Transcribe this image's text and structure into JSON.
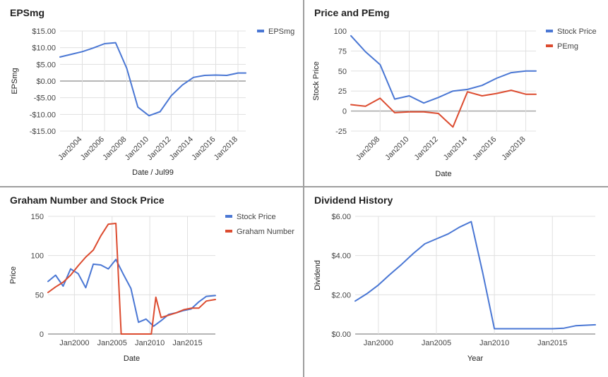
{
  "colors": {
    "blue": "#4a77d4",
    "red": "#dc4b2f",
    "grid": "#e0e0e0",
    "baseline": "#9e9e9e",
    "tick_text": "#444444",
    "title_text": "#222222"
  },
  "chart_data": [
    {
      "id": "epsmg",
      "type": "line",
      "title": "EPSmg",
      "xlabel": "Date / Jul99",
      "ylabel": "EPSmg",
      "x_axis": "date",
      "xlim": [
        2002.0,
        2018.7
      ],
      "ylim": [
        -15,
        15
      ],
      "yticks": [
        15,
        10,
        5,
        0,
        -5,
        -10,
        -15
      ],
      "ytick_labels": [
        "$15.00",
        "$10.00",
        "$5.00",
        "$0.00",
        "-$5.00",
        "-$10.00",
        "-$15.00"
      ],
      "xticks": [
        2004,
        2006,
        2008,
        2010,
        2012,
        2014,
        2016,
        2018
      ],
      "xtick_labels": [
        "Jan2004",
        "Jan2006",
        "Jan2008",
        "Jan2010",
        "Jan2012",
        "Jan2014",
        "Jan2016",
        "Jan2018"
      ],
      "x_label_rotate": true,
      "legend": "top-right",
      "series": [
        {
          "name": "EPSmg",
          "color": "#4a77d4",
          "x": [
            2002.0,
            2003.0,
            2004.0,
            2005.0,
            2006.0,
            2007.0,
            2008.0,
            2009.0,
            2010.0,
            2011.0,
            2012.0,
            2013.0,
            2014.0,
            2015.0,
            2016.0,
            2017.0,
            2018.0,
            2018.7
          ],
          "y": [
            7.2,
            8.0,
            8.8,
            9.9,
            11.2,
            11.5,
            3.8,
            -7.8,
            -10.4,
            -9.2,
            -4.4,
            -1.2,
            1.1,
            1.7,
            1.8,
            1.7,
            2.4,
            2.4
          ]
        }
      ]
    },
    {
      "id": "price-pemg",
      "type": "line",
      "title": "Price and PEmg",
      "xlabel": "Date",
      "ylabel": "Stock Price",
      "x_axis": "date",
      "xlim": [
        2006.0,
        2018.7
      ],
      "ylim": [
        -25,
        100
      ],
      "yticks": [
        100,
        75,
        50,
        25,
        0,
        -25
      ],
      "ytick_labels": [
        "100",
        "75",
        "50",
        "25",
        "0",
        "-25"
      ],
      "xticks": [
        2008,
        2010,
        2012,
        2014,
        2016,
        2018
      ],
      "xtick_labels": [
        "Jan2008",
        "Jan2010",
        "Jan2012",
        "Jan2014",
        "Jan2016",
        "Jan2018"
      ],
      "x_label_rotate": true,
      "legend": "top-right",
      "series": [
        {
          "name": "Stock Price",
          "color": "#4a77d4",
          "x": [
            2006.0,
            2007.0,
            2008.0,
            2009.0,
            2010.0,
            2011.0,
            2012.0,
            2013.0,
            2014.0,
            2015.0,
            2016.0,
            2017.0,
            2018.0,
            2018.7
          ],
          "y": [
            94,
            74,
            58,
            15,
            19,
            10,
            17,
            25,
            27,
            32,
            41,
            48,
            50,
            50
          ]
        },
        {
          "name": "PEmg",
          "color": "#dc4b2f",
          "x": [
            2006.0,
            2007.0,
            2008.0,
            2009.0,
            2010.0,
            2011.0,
            2012.0,
            2013.0,
            2014.0,
            2015.0,
            2016.0,
            2017.0,
            2018.0,
            2018.7
          ],
          "y": [
            8,
            6,
            16,
            -2,
            -1,
            -1,
            -3,
            -20,
            24,
            19,
            22,
            26,
            21,
            21
          ]
        }
      ]
    },
    {
      "id": "graham",
      "type": "line",
      "title": "Graham Number and Stock Price",
      "xlabel": "Date",
      "ylabel": "Price",
      "x_axis": "date",
      "xlim": [
        1996.5,
        2018.7
      ],
      "ylim": [
        0,
        150
      ],
      "yticks": [
        150,
        100,
        50,
        0
      ],
      "ytick_labels": [
        "150",
        "100",
        "50",
        "0"
      ],
      "xticks": [
        2000,
        2005,
        2010,
        2015
      ],
      "xtick_labels": [
        "Jan2000",
        "Jan2005",
        "Jan2010",
        "Jan2015"
      ],
      "x_label_rotate": false,
      "legend": "top-right",
      "series": [
        {
          "name": "Stock Price",
          "color": "#4a77d4",
          "x": [
            1996.5,
            1997.5,
            1998.5,
            1999.5,
            2000.5,
            2001.5,
            2002.5,
            2003.5,
            2004.5,
            2005.5,
            2006.5,
            2007.5,
            2008.5,
            2009.5,
            2010.5,
            2011.5,
            2012.5,
            2013.5,
            2014.5,
            2015.5,
            2016.5,
            2017.5,
            2018.7
          ],
          "y": [
            67,
            75,
            61,
            83,
            77,
            59,
            89,
            88,
            83,
            95,
            76,
            58,
            15,
            19,
            10,
            17,
            25,
            27,
            30,
            32,
            41,
            48,
            49
          ]
        },
        {
          "name": "Graham Number",
          "color": "#dc4b2f",
          "x": [
            1996.5,
            1997.5,
            1998.5,
            1999.5,
            2000.5,
            2001.5,
            2002.5,
            2003.5,
            2004.5,
            2005.5,
            2006.2,
            2006.8,
            2007.5,
            2008.5,
            2009.5,
            2010.2,
            2010.8,
            2011.5,
            2012.5,
            2013.5,
            2014.5,
            2015.5,
            2016.5,
            2017.5,
            2018.7
          ],
          "y": [
            53,
            60,
            66,
            75,
            87,
            98,
            107,
            125,
            140,
            141,
            0,
            0,
            0,
            0,
            0,
            0,
            47,
            21,
            24,
            27,
            31,
            33,
            33,
            42,
            44
          ]
        }
      ]
    },
    {
      "id": "dividend",
      "type": "line",
      "title": "Dividend History",
      "xlabel": "Year",
      "ylabel": "Dividend",
      "x_axis": "year",
      "xlim": [
        1998,
        2018.7
      ],
      "ylim": [
        0,
        6
      ],
      "yticks": [
        6,
        4,
        2,
        0
      ],
      "ytick_labels": [
        "$6.00",
        "$4.00",
        "$2.00",
        "$0.00"
      ],
      "xticks": [
        2000,
        2005,
        2010,
        2015
      ],
      "xtick_labels": [
        "Jan2000",
        "Jan2005",
        "Jan2010",
        "Jan2015"
      ],
      "x_label_rotate": false,
      "legend": "none",
      "series": [
        {
          "name": "",
          "color": "#4a77d4",
          "x": [
            1998,
            1999,
            2000,
            2001,
            2002,
            2003,
            2004,
            2005,
            2006,
            2007,
            2008,
            2009,
            2010,
            2011,
            2012,
            2013,
            2014,
            2015,
            2016,
            2017,
            2018.7
          ],
          "y": [
            1.68,
            2.05,
            2.5,
            3.04,
            3.55,
            4.1,
            4.6,
            4.85,
            5.1,
            5.45,
            5.73,
            3.1,
            0.27,
            0.27,
            0.27,
            0.27,
            0.27,
            0.27,
            0.3,
            0.42,
            0.47
          ]
        }
      ]
    }
  ]
}
